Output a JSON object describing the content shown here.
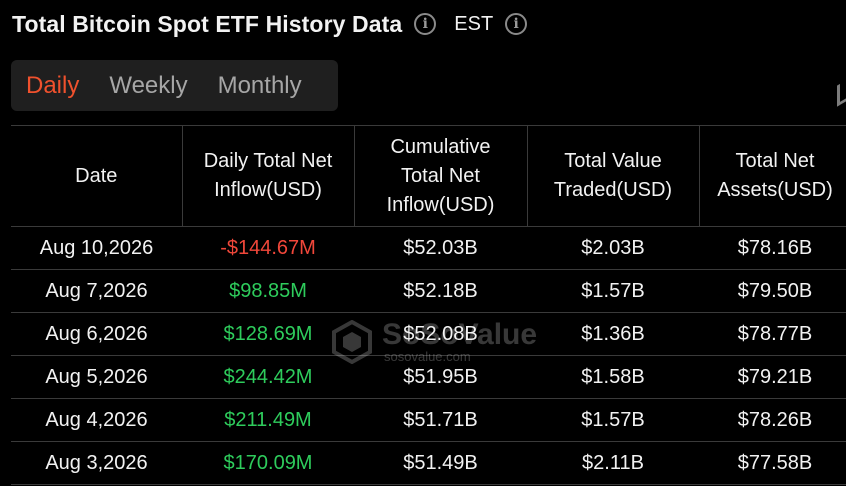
{
  "header": {
    "title": "Total Bitcoin Spot ETF History Data",
    "timezone": "EST"
  },
  "tabs": [
    {
      "label": "Daily",
      "active": true
    },
    {
      "label": "Weekly",
      "active": false
    },
    {
      "label": "Monthly",
      "active": false
    }
  ],
  "table": {
    "columns": [
      "Date",
      "Daily Total Net Inflow(USD)",
      "Cumulative Total Net Inflow(USD)",
      "Total Value Traded(USD)",
      "Total Net Assets(USD)"
    ],
    "rows": [
      [
        "Aug 10,2026",
        "-$144.67M",
        "$52.03B",
        "$2.03B",
        "$78.16B"
      ],
      [
        "Aug 7,2026",
        "$98.85M",
        "$52.18B",
        "$1.57B",
        "$79.50B"
      ],
      [
        "Aug 6,2026",
        "$128.69M",
        "$52.08B",
        "$1.36B",
        "$78.77B"
      ],
      [
        "Aug 5,2026",
        "$244.42M",
        "$51.95B",
        "$1.58B",
        "$79.21B"
      ],
      [
        "Aug 4,2026",
        "$211.49M",
        "$51.71B",
        "$1.57B",
        "$78.26B"
      ],
      [
        "Aug 3,2026",
        "$170.09M",
        "$51.49B",
        "$2.11B",
        "$77.58B"
      ]
    ]
  },
  "watermark": {
    "brand": "SoSoValue",
    "url": "sosovalue.com"
  },
  "colors": {
    "accent": "#f0512d",
    "positive": "#2ecc5c",
    "negative": "#f0473a",
    "background": "#000000"
  },
  "icons": [
    "info-icon",
    "info-icon"
  ]
}
